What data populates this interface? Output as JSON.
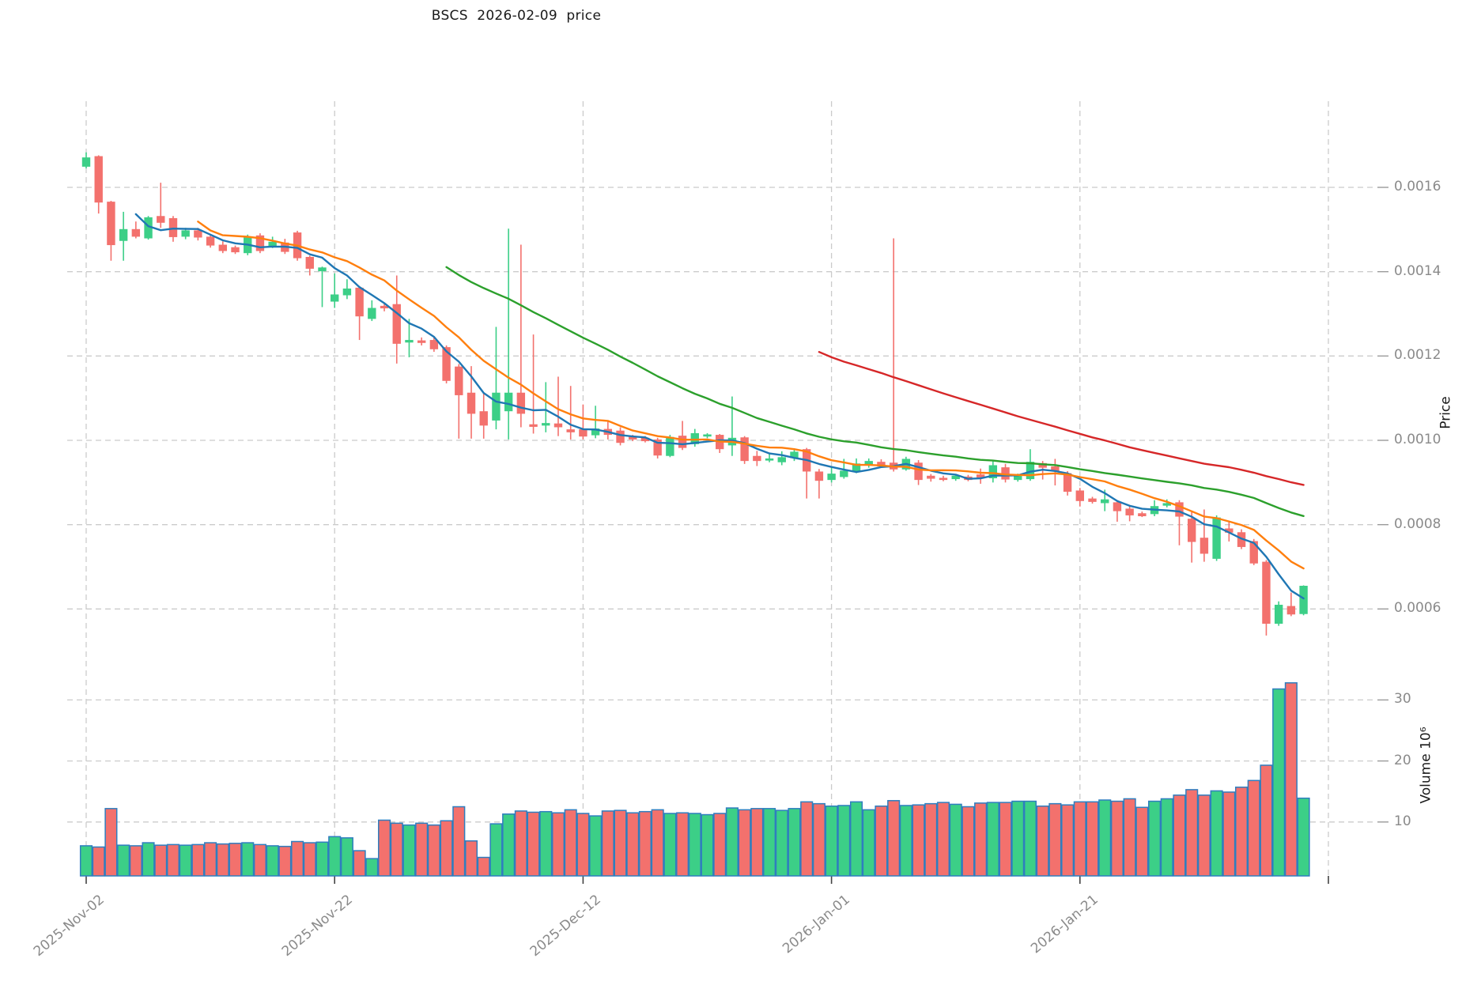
{
  "title": "BSCS  2026-02-09  price",
  "price_axis": {
    "label": "Price",
    "ticks": [
      "0.0016",
      "0.0014",
      "0.0012",
      "0.0010",
      "0.0008",
      "0.0006"
    ],
    "tick_values": [
      0.0016,
      0.0014,
      0.0012,
      0.001,
      0.0008,
      0.0006
    ]
  },
  "volume_axis": {
    "label": "Volume  10⁶",
    "ticks": [
      "30",
      "20",
      "10"
    ],
    "tick_values": [
      30,
      20,
      10
    ]
  },
  "x_axis": {
    "tick_labels": [
      {
        "label": "2025-Nov-02",
        "day": 1
      },
      {
        "label": "2025-Nov-22",
        "day": 21
      },
      {
        "label": "2025-Dec-12",
        "day": 41
      },
      {
        "label": "2026-Jan-01",
        "day": 61
      },
      {
        "label": "2026-Jan-21",
        "day": 81
      },
      {
        "label": "",
        "day": 101
      }
    ]
  },
  "colors": {
    "up": "#3ccf87",
    "down": "#f3716d",
    "volume_bar_edge": "#2f7ebf",
    "sma5": "#1f77b4",
    "sma10": "#ff7f0e",
    "sma30": "#2ca02c",
    "sma60": "#d62728",
    "grid": "#cbcbcb",
    "tick_text": "#8a8a8a",
    "axis_tick_mark": "#444444"
  },
  "chart_data": {
    "type": "candlestick",
    "title": "BSCS  2026-02-09  price",
    "symbol": "BSCS",
    "as_of_date": "2026-02-09",
    "xlabel": "",
    "ylabel_price": "Price",
    "ylabel_volume": "Volume  10⁶",
    "price_ylim": [
      0.00052,
      0.00172
    ],
    "volume_ylim_millions": [
      0,
      38
    ],
    "grid": true,
    "num_days": 99,
    "indicators": [
      {
        "name": "SMA5",
        "period": 5,
        "color": "#1f77b4"
      },
      {
        "name": "SMA10",
        "period": 10,
        "color": "#ff7f0e"
      },
      {
        "name": "SMA30",
        "period": 30,
        "color": "#2ca02c"
      },
      {
        "name": "SMA60",
        "period": 60,
        "color": "#d62728"
      }
    ],
    "candles_ohlc": [
      [
        0.001649,
        0.001683,
        0.001645,
        0.001671
      ],
      [
        0.001674,
        0.001676,
        0.001538,
        0.001564
      ],
      [
        0.001566,
        0.001568,
        0.001426,
        0.001463
      ],
      [
        0.001473,
        0.001542,
        0.001426,
        0.001501
      ],
      [
        0.001501,
        0.001519,
        0.001479,
        0.001483
      ],
      [
        0.001479,
        0.001532,
        0.001476,
        0.001529
      ],
      [
        0.001532,
        0.001611,
        0.001504,
        0.001516
      ],
      [
        0.001527,
        0.001532,
        0.001471,
        0.001482
      ],
      [
        0.001483,
        0.001504,
        0.001477,
        0.001498
      ],
      [
        0.001498,
        0.001504,
        0.001474,
        0.001481
      ],
      [
        0.001483,
        0.001488,
        0.001457,
        0.001462
      ],
      [
        0.001464,
        0.001472,
        0.001444,
        0.001449
      ],
      [
        0.001458,
        0.001462,
        0.001442,
        0.001446
      ],
      [
        0.001444,
        0.001488,
        0.001439,
        0.001483
      ],
      [
        0.001486,
        0.001491,
        0.001444,
        0.001449
      ],
      [
        0.001461,
        0.001483,
        0.001456,
        0.001471
      ],
      [
        0.001469,
        0.001478,
        0.001442,
        0.001447
      ],
      [
        0.001493,
        0.001497,
        0.001426,
        0.001432
      ],
      [
        0.001435,
        0.001438,
        0.001391,
        0.001407
      ],
      [
        0.001401,
        0.001412,
        0.001316,
        0.00141
      ],
      [
        0.001329,
        0.001396,
        0.001314,
        0.001346
      ],
      [
        0.001344,
        0.001382,
        0.001335,
        0.00136
      ],
      [
        0.001362,
        0.001366,
        0.001238,
        0.001294
      ],
      [
        0.001288,
        0.001332,
        0.001283,
        0.001314
      ],
      [
        0.001319,
        0.001327,
        0.001306,
        0.001313
      ],
      [
        0.001323,
        0.001391,
        0.001182,
        0.001229
      ],
      [
        0.001232,
        0.001288,
        0.001197,
        0.001238
      ],
      [
        0.001237,
        0.001244,
        0.001225,
        0.001231
      ],
      [
        0.001238,
        0.001244,
        0.00121,
        0.001216
      ],
      [
        0.001221,
        0.001225,
        0.001135,
        0.001141
      ],
      [
        0.001175,
        0.001181,
        0.001004,
        0.001107
      ],
      [
        0.001113,
        0.001176,
        0.001004,
        0.001063
      ],
      [
        0.001069,
        0.001114,
        0.001004,
        0.001035
      ],
      [
        0.001047,
        0.001269,
        0.001026,
        0.001113
      ],
      [
        0.001069,
        0.001502,
        0.001002,
        0.001113
      ],
      [
        0.001113,
        0.001464,
        0.001031,
        0.001063
      ],
      [
        0.001038,
        0.001251,
        0.001016,
        0.001032
      ],
      [
        0.001035,
        0.001138,
        0.001019,
        0.001041
      ],
      [
        0.00104,
        0.001151,
        0.00101,
        0.001031
      ],
      [
        0.001026,
        0.001129,
        0.001002,
        0.001019
      ],
      [
        0.001026,
        0.001085,
        0.001002,
        0.001009
      ],
      [
        0.001012,
        0.001082,
        0.001005,
        0.001028
      ],
      [
        0.001027,
        0.001047,
        0.001002,
        0.001013
      ],
      [
        0.001023,
        0.001031,
        0.000988,
        0.000994
      ],
      [
        0.00101,
        0.001013,
        0.000998,
        0.001002
      ],
      [
        0.001006,
        0.00101,
        0.000995,
        0.000998
      ],
      [
        0.001002,
        0.001006,
        0.000957,
        0.000964
      ],
      [
        0.000963,
        0.001013,
        0.00096,
        0.001008
      ],
      [
        0.001011,
        0.001046,
        0.000977,
        0.000982
      ],
      [
        0.000991,
        0.001027,
        0.000985,
        0.001017
      ],
      [
        0.001009,
        0.001017,
        0.001005,
        0.001014
      ],
      [
        0.001013,
        0.001015,
        0.00097,
        0.000979
      ],
      [
        0.000988,
        0.001104,
        0.000963,
        0.001006
      ],
      [
        0.001007,
        0.00101,
        0.000944,
        0.000951
      ],
      [
        0.000963,
        0.000975,
        0.000939,
        0.000951
      ],
      [
        0.000952,
        0.000968,
        0.000948,
        0.000957
      ],
      [
        0.000948,
        0.000974,
        0.000941,
        0.00096
      ],
      [
        0.000958,
        0.000979,
        0.000951,
        0.000973
      ],
      [
        0.000979,
        0.000982,
        0.000862,
        0.000926
      ],
      [
        0.000926,
        0.000932,
        0.000862,
        0.000904
      ],
      [
        0.000906,
        0.000938,
        0.0009,
        0.000921
      ],
      [
        0.000913,
        0.000956,
        0.000909,
        0.000928
      ],
      [
        0.000927,
        0.000957,
        0.000922,
        0.000945
      ],
      [
        0.000941,
        0.000957,
        0.000935,
        0.000951
      ],
      [
        0.000949,
        0.000955,
        0.000935,
        0.000938
      ],
      [
        0.000947,
        0.001479,
        0.000926,
        0.000931
      ],
      [
        0.000931,
        0.000961,
        0.000928,
        0.000956
      ],
      [
        0.000947,
        0.000953,
        0.000894,
        0.000906
      ],
      [
        0.000916,
        0.00092,
        0.000902,
        0.000909
      ],
      [
        0.000911,
        0.000916,
        0.000903,
        0.000906
      ],
      [
        0.000908,
        0.000918,
        0.000904,
        0.000916
      ],
      [
        0.000914,
        0.000918,
        0.000903,
        0.000906
      ],
      [
        0.000919,
        0.000933,
        0.000897,
        0.000912
      ],
      [
        0.00091,
        0.000951,
        0.0009,
        0.000941
      ],
      [
        0.000936,
        0.000944,
        0.0009,
        0.000907
      ],
      [
        0.000906,
        0.000921,
        0.000902,
        0.000919
      ],
      [
        0.000908,
        0.000979,
        0.000904,
        0.000949
      ],
      [
        0.000946,
        0.000951,
        0.000907,
        0.000935
      ],
      [
        0.000938,
        0.000956,
        0.000893,
        0.000926
      ],
      [
        0.000922,
        0.000927,
        0.000869,
        0.000878
      ],
      [
        0.000881,
        0.000887,
        0.000843,
        0.000856
      ],
      [
        0.000862,
        0.000866,
        0.00085,
        0.000854
      ],
      [
        0.000851,
        0.000883,
        0.000832,
        0.00086
      ],
      [
        0.000853,
        0.000858,
        0.000807,
        0.000832
      ],
      [
        0.000838,
        0.000843,
        0.000808,
        0.000822
      ],
      [
        0.000827,
        0.000831,
        0.000818,
        0.00082
      ],
      [
        0.000825,
        0.000858,
        0.00082,
        0.000844
      ],
      [
        0.000845,
        0.00086,
        0.000841,
        0.000851
      ],
      [
        0.000853,
        0.000858,
        0.000751,
        0.000819
      ],
      [
        0.000814,
        0.000831,
        0.00071,
        0.000759
      ],
      [
        0.000769,
        0.000836,
        0.000712,
        0.000731
      ],
      [
        0.000719,
        0.000822,
        0.000714,
        0.000817
      ],
      [
        0.000791,
        0.000808,
        0.00076,
        0.000781
      ],
      [
        0.000782,
        0.000789,
        0.000742,
        0.000747
      ],
      [
        0.000761,
        0.000766,
        0.000704,
        0.000708
      ],
      [
        0.000712,
        0.000716,
        0.000537,
        0.000565
      ],
      [
        0.000565,
        0.000618,
        0.00056,
        0.00061
      ],
      [
        0.000607,
        0.000639,
        0.000583,
        0.000587
      ],
      [
        0.000588,
        0.000656,
        0.000585,
        0.000655
      ]
    ],
    "volumes_millions": [
      6.1,
      5.9,
      12.2,
      6.2,
      6.1,
      6.6,
      6.2,
      6.3,
      6.2,
      6.3,
      6.6,
      6.4,
      6.5,
      6.6,
      6.3,
      6.1,
      6.0,
      6.8,
      6.6,
      6.7,
      7.6,
      7.4,
      5.3,
      4.0,
      10.3,
      9.8,
      9.5,
      9.8,
      9.5,
      10.2,
      12.5,
      6.9,
      4.2,
      9.7,
      11.3,
      11.8,
      11.6,
      11.7,
      11.5,
      12.0,
      11.4,
      11.0,
      11.8,
      11.9,
      11.5,
      11.7,
      12.0,
      11.4,
      11.5,
      11.4,
      11.2,
      11.4,
      12.3,
      12.0,
      12.2,
      12.2,
      11.9,
      12.2,
      13.3,
      13.0,
      12.6,
      12.7,
      13.3,
      12.0,
      12.6,
      13.5,
      12.7,
      12.8,
      13.0,
      13.2,
      12.9,
      12.5,
      13.1,
      13.2,
      13.2,
      13.4,
      13.4,
      12.6,
      13.0,
      12.8,
      13.3,
      13.3,
      13.6,
      13.4,
      13.8,
      12.4,
      13.4,
      13.8,
      14.4,
      15.3,
      14.4,
      15.1,
      14.9,
      15.7,
      16.8,
      19.3,
      31.8,
      32.8,
      13.9
    ]
  }
}
